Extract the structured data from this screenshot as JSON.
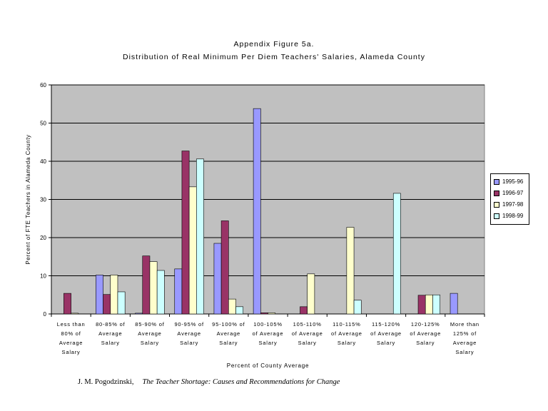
{
  "chart_data": {
    "type": "bar",
    "title": "Appendix Figure 5a.",
    "subtitle": "Distribution of Real Minimum Per Diem Teachers' Salaries, Alameda County",
    "xlabel": "Percent of County Average",
    "ylabel": "Percent of FTE Teachers in Alameda County",
    "ylim": [
      0,
      60
    ],
    "yticks": [
      0,
      10,
      20,
      30,
      40,
      50,
      60
    ],
    "grid": true,
    "legend_position": "right",
    "categories": [
      [
        "Less than",
        "80% of",
        "Average",
        "Salary"
      ],
      [
        "80-85% of",
        "Average",
        "Salary"
      ],
      [
        "85-90% of",
        "Average",
        "Salary"
      ],
      [
        "90-95% of",
        "Average",
        "Salary"
      ],
      [
        "95-100% of",
        "Average",
        "Salary"
      ],
      [
        "100-105%",
        "of Average",
        "Salary"
      ],
      [
        "105-110%",
        "of Average",
        "Salary"
      ],
      [
        "110-115%",
        "of Average",
        "Salary"
      ],
      [
        "115-120%",
        "of Average",
        "Salary"
      ],
      [
        "120-125%",
        "of Average",
        "Salary"
      ],
      [
        "More than",
        "125% of",
        "Average",
        "Salary"
      ]
    ],
    "series": [
      {
        "name": "1995-96",
        "color": "#9999ff",
        "values": [
          0,
          10.2,
          0.2,
          11.8,
          18.5,
          53.8,
          0,
          0,
          0,
          0,
          5.4
        ]
      },
      {
        "name": "1996-97",
        "color": "#993366",
        "values": [
          5.4,
          5.1,
          15.2,
          42.7,
          24.4,
          0.3,
          1.9,
          0,
          0,
          4.9,
          0
        ]
      },
      {
        "name": "1997-98",
        "color": "#ffffcc",
        "values": [
          0.2,
          10.2,
          13.7,
          33.3,
          3.9,
          0.3,
          10.5,
          22.7,
          0,
          5.0,
          0
        ]
      },
      {
        "name": "1998-99",
        "color": "#ccffff",
        "values": [
          0,
          5.8,
          11.4,
          40.6,
          1.9,
          0,
          0,
          3.6,
          31.6,
          5.0,
          0
        ]
      }
    ]
  },
  "footer": {
    "author": "J. M. Pogodzinski,",
    "book": "The Teacher Shortage: Causes and Recommendations for Change"
  }
}
